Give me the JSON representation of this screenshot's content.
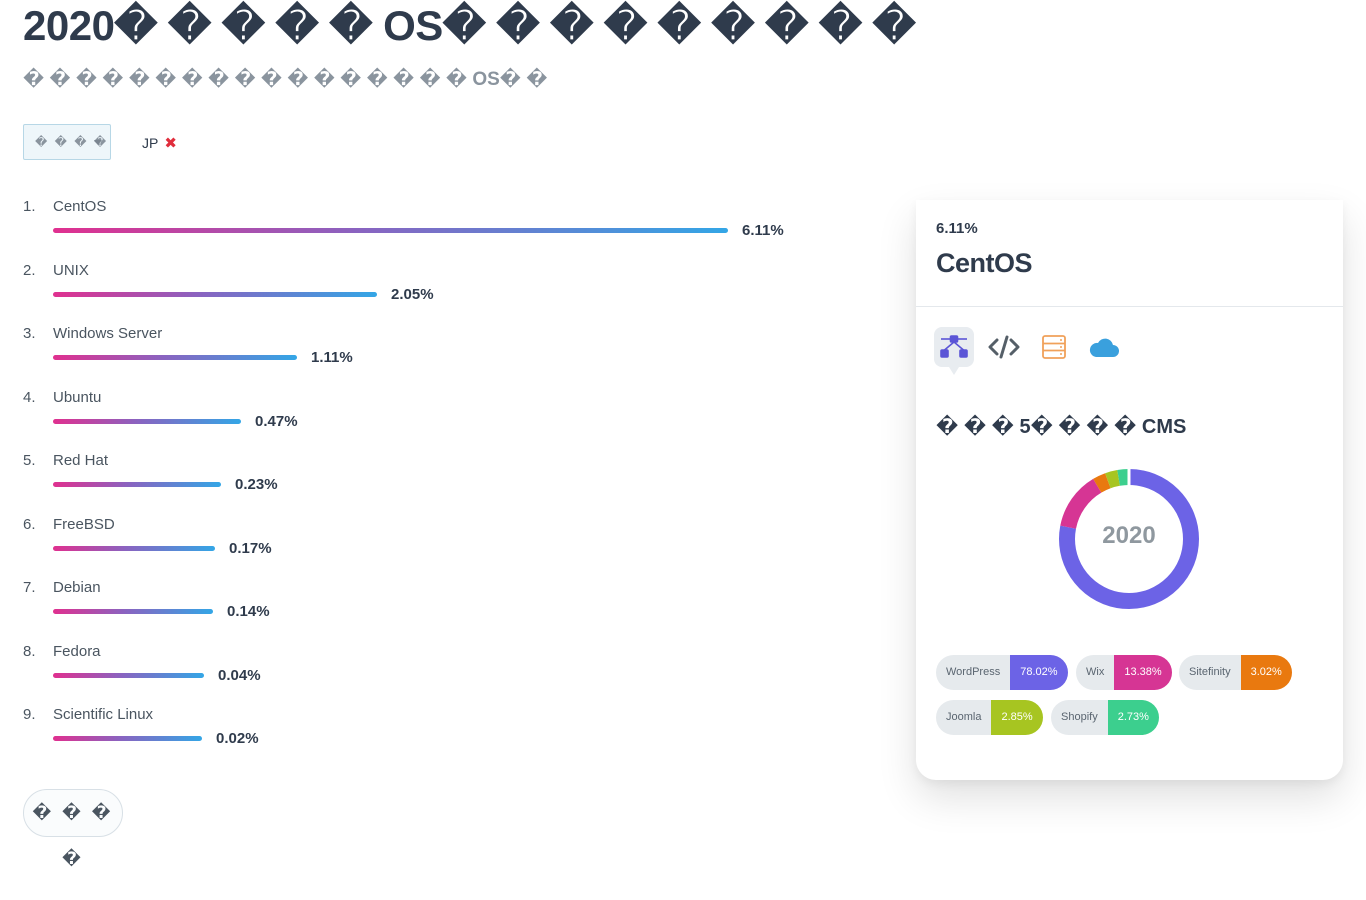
{
  "header": {
    "title": "2020� � � � � OS� � � � � � � � �",
    "subtitle": "� � � � � � � � � � � � � � � � � OS� �"
  },
  "filters": {
    "select_label": "� � � �",
    "chip_label": "JP",
    "chip_remove": "✖"
  },
  "ranking": [
    {
      "rank": "1.",
      "name": "CentOS",
      "value": "6.11%",
      "fraction": 1.0
    },
    {
      "rank": "2.",
      "name": "UNIX",
      "value": "2.05%",
      "fraction": 0.48
    },
    {
      "rank": "3.",
      "name": "Windows Server",
      "value": "1.11%",
      "fraction": 0.362
    },
    {
      "rank": "4.",
      "name": "Ubuntu",
      "value": "0.47%",
      "fraction": 0.279
    },
    {
      "rank": "5.",
      "name": "Red Hat",
      "value": "0.23%",
      "fraction": 0.249
    },
    {
      "rank": "6.",
      "name": "FreeBSD",
      "value": "0.17%",
      "fraction": 0.24
    },
    {
      "rank": "7.",
      "name": "Debian",
      "value": "0.14%",
      "fraction": 0.237
    },
    {
      "rank": "8.",
      "name": "Fedora",
      "value": "0.04%",
      "fraction": 0.224
    },
    {
      "rank": "9.",
      "name": "Scientific Linux",
      "value": "0.02%",
      "fraction": 0.221
    }
  ],
  "more_button": "� � � �",
  "detail_card": {
    "percent": "6.11%",
    "title": "CentOS",
    "tabs": [
      {
        "icon": "network-icon",
        "active": true
      },
      {
        "icon": "code-icon",
        "active": false
      },
      {
        "icon": "server-icon",
        "active": false
      },
      {
        "icon": "cloud-icon",
        "active": false
      }
    ],
    "cms_heading": "� � � 5� � � � CMS",
    "year": "2020",
    "cms": [
      {
        "name": "WordPress",
        "value": "78.02%",
        "share": 78.02,
        "color": "#6c63e6"
      },
      {
        "name": "Wix",
        "value": "13.38%",
        "share": 13.38,
        "color": "#d63594"
      },
      {
        "name": "Sitefinity",
        "value": "3.02%",
        "share": 3.02,
        "color": "#e9790f"
      },
      {
        "name": "Joomla",
        "value": "2.85%",
        "share": 2.85,
        "color": "#a7c521"
      },
      {
        "name": "Shopify",
        "value": "2.73%",
        "share": 2.73,
        "color": "#3ccf8e"
      }
    ]
  }
}
